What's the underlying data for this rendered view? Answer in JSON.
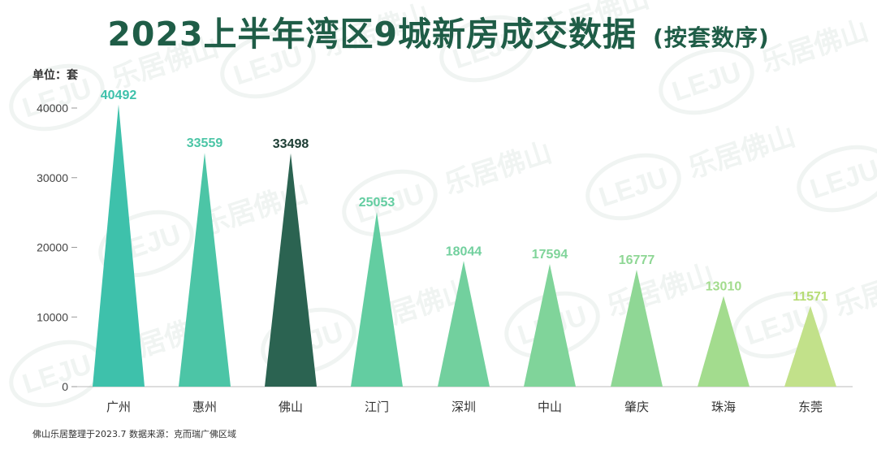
{
  "header": {
    "title": "2023上半年湾区9城新房成交数据",
    "subtitle": "(按套数序)"
  },
  "unit_label": "单位：套",
  "footer": {
    "source": "佛山乐居整理于2023.7 数据来源：克而瑞广佛区域"
  },
  "watermark": {
    "logo": "LEJU",
    "text": "乐居佛山"
  },
  "chart_data": {
    "type": "bar",
    "categories": [
      "广州",
      "惠州",
      "佛山",
      "江门",
      "深圳",
      "中山",
      "肇庆",
      "珠海",
      "东莞"
    ],
    "values": [
      40492,
      33559,
      33498,
      25053,
      18044,
      17594,
      16777,
      13010,
      11571
    ],
    "colors": [
      "#3ec1ab",
      "#4cc5a6",
      "#2b6351",
      "#63cda1",
      "#72d09e",
      "#80d49a",
      "#8fd795",
      "#a3dc8e",
      "#c2e18a"
    ],
    "label_colors": [
      "#3ec1ab",
      "#4cc5a6",
      "#1c3d33",
      "#63cda1",
      "#72d09e",
      "#80d49a",
      "#8fd795",
      "#a3dc8e",
      "#b6dc74"
    ],
    "ylim": [
      0,
      40000
    ],
    "yticks": [
      0,
      10000,
      20000,
      30000,
      40000
    ],
    "xlabel": "",
    "ylabel": "",
    "grid": false,
    "legend": "none",
    "mark_shape": "triangle"
  }
}
